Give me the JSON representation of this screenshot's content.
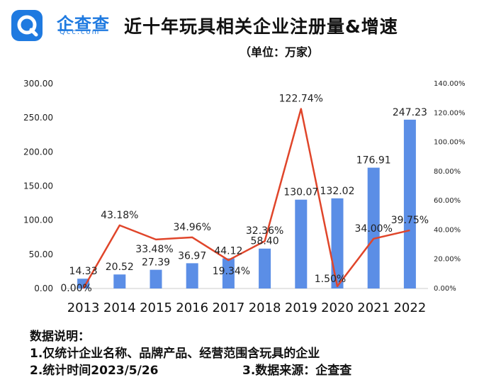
{
  "brand": {
    "name": "企查查",
    "sub": "Qcc.com"
  },
  "title": "近十年玩具相关企业注册量&增速",
  "subtitle": "（单位：万家）",
  "chart_data": {
    "type": "bar",
    "categories": [
      "2013",
      "2014",
      "2015",
      "2016",
      "2017",
      "2018",
      "2019",
      "2020",
      "2021",
      "2022"
    ],
    "series": [
      {
        "type": "bar",
        "axis": "left",
        "values": [
          14.33,
          20.52,
          27.39,
          36.97,
          44.12,
          58.4,
          130.07,
          132.02,
          176.91,
          247.23
        ],
        "labels": [
          "14.33",
          "20.52",
          "27.39",
          "36.97",
          "44.12",
          "58.40",
          "130.07",
          "132.02",
          "176.91",
          "247.23"
        ],
        "color": "#5b8ee6"
      },
      {
        "type": "line",
        "axis": "right",
        "values": [
          0.0,
          43.18,
          33.48,
          34.96,
          19.34,
          32.36,
          122.74,
          1.5,
          34.0,
          39.75
        ],
        "labels": [
          "0.00%",
          "43.18%",
          "33.48%",
          "34.96%",
          "19.34%",
          "32.36%",
          "122.74%",
          "1.50%",
          "34.00%",
          "39.75%"
        ],
        "color": "#e0452a"
      }
    ],
    "y_left": {
      "min": 0,
      "max": 300,
      "ticks": [
        "0.00",
        "50.00",
        "100.00",
        "150.00",
        "200.00",
        "250.00",
        "300.00"
      ]
    },
    "y_right": {
      "min": 0,
      "max": 140,
      "ticks": [
        "0.00%",
        "20.00%",
        "40.00%",
        "60.00%",
        "80.00%",
        "100.00%",
        "120.00%",
        "140.00%"
      ]
    },
    "grid": false
  },
  "notes": {
    "heading": "数据说明：",
    "line1": "1.仅统计企业名称、品牌产品、经营范围含玩具的企业",
    "line2": "2.统计时间2023/5/26",
    "source": "3.数据来源：企查查"
  }
}
